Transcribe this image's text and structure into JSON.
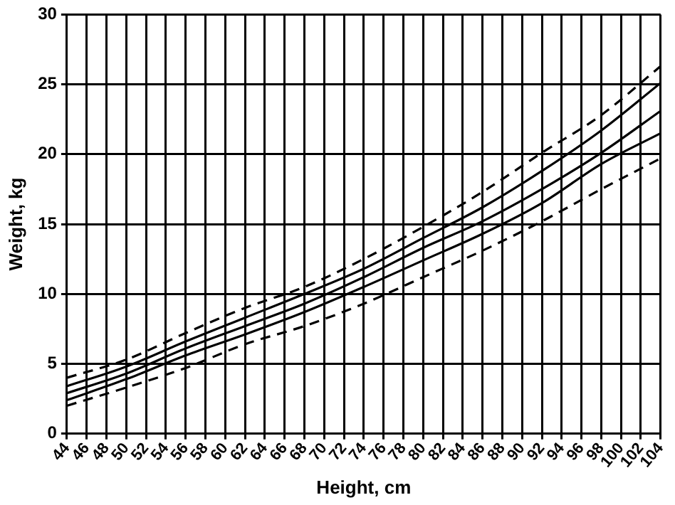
{
  "chart_data": {
    "type": "line",
    "xlabel": "Height, cm",
    "ylabel": "Weight, kg",
    "x": [
      44,
      50,
      56,
      62,
      68,
      74,
      80,
      86,
      92,
      98,
      104
    ],
    "series": [
      {
        "color": "#000000",
        "line_style": "dashed",
        "values": [
          4.0,
          5.3,
          7.2,
          9.0,
          10.5,
          12.5,
          14.8,
          17.3,
          20.1,
          22.8,
          26.3
        ]
      },
      {
        "color": "#000000",
        "line_style": "solid",
        "values": [
          3.4,
          4.8,
          6.6,
          8.3,
          10.0,
          11.8,
          14.0,
          16.2,
          18.8,
          21.7,
          25.1
        ]
      },
      {
        "color": "#000000",
        "line_style": "solid",
        "values": [
          2.9,
          4.3,
          6.1,
          7.7,
          9.3,
          11.2,
          13.3,
          15.2,
          17.5,
          20.1,
          23.1
        ]
      },
      {
        "color": "#000000",
        "line_style": "solid",
        "values": [
          2.4,
          3.9,
          5.6,
          7.1,
          8.7,
          10.5,
          12.4,
          14.3,
          16.5,
          19.3,
          21.5
        ]
      },
      {
        "color": "#000000",
        "line_style": "dashed",
        "values": [
          2.0,
          3.3,
          4.7,
          6.4,
          7.7,
          9.3,
          11.2,
          13.1,
          15.2,
          17.5,
          19.7
        ]
      }
    ],
    "xlim": [
      44,
      104
    ],
    "xticks": [
      44,
      46,
      48,
      50,
      52,
      54,
      56,
      58,
      60,
      62,
      64,
      66,
      68,
      70,
      72,
      74,
      76,
      78,
      80,
      82,
      84,
      86,
      88,
      90,
      92,
      94,
      96,
      98,
      100,
      102,
      104
    ],
    "ylim": [
      0,
      30
    ],
    "yticks": [
      0,
      5,
      10,
      15,
      20,
      25,
      30
    ],
    "grid": true,
    "legend": false,
    "marker": "none"
  }
}
